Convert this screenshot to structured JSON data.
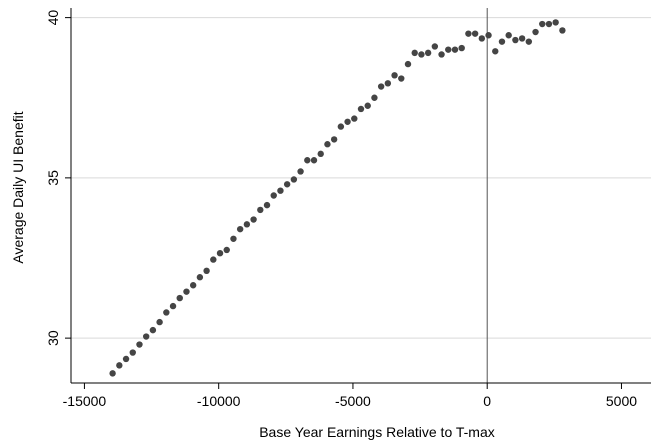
{
  "chart_data": {
    "type": "scatter",
    "xlabel": "Base Year Earnings Relative to T-max",
    "ylabel": "Average Daily UI Benefit",
    "xlim": [
      -15500,
      6100
    ],
    "ylim": [
      28.6,
      40.3
    ],
    "x_ticks": [
      -15000,
      -10000,
      -5000,
      0,
      5000
    ],
    "x_tick_labels": [
      "-15000",
      "-10000",
      "-5000",
      "0",
      "5000"
    ],
    "y_ticks": [
      30,
      35,
      40
    ],
    "y_tick_labels": [
      "30",
      "35",
      "40"
    ],
    "grid": "horizontal",
    "reference_line_x": 0,
    "marker_color": "#454545",
    "series": [
      {
        "points": [
          [
            -13950,
            28.9
          ],
          [
            -13700,
            29.15
          ],
          [
            -13450,
            29.35
          ],
          [
            -13200,
            29.55
          ],
          [
            -12950,
            29.8
          ],
          [
            -12700,
            30.05
          ],
          [
            -12450,
            30.25
          ],
          [
            -12200,
            30.5
          ],
          [
            -11950,
            30.8
          ],
          [
            -11700,
            31.0
          ],
          [
            -11450,
            31.25
          ],
          [
            -11200,
            31.45
          ],
          [
            -10950,
            31.65
          ],
          [
            -10700,
            31.9
          ],
          [
            -10450,
            32.1
          ],
          [
            -10200,
            32.45
          ],
          [
            -9950,
            32.65
          ],
          [
            -9700,
            32.75
          ],
          [
            -9450,
            33.1
          ],
          [
            -9200,
            33.4
          ],
          [
            -8950,
            33.55
          ],
          [
            -8700,
            33.7
          ],
          [
            -8450,
            34.0
          ],
          [
            -8200,
            34.15
          ],
          [
            -7950,
            34.45
          ],
          [
            -7700,
            34.6
          ],
          [
            -7450,
            34.8
          ],
          [
            -7200,
            34.95
          ],
          [
            -6950,
            35.2
          ],
          [
            -6700,
            35.55
          ],
          [
            -6450,
            35.55
          ],
          [
            -6200,
            35.75
          ],
          [
            -5950,
            36.05
          ],
          [
            -5700,
            36.2
          ],
          [
            -5450,
            36.6
          ],
          [
            -5200,
            36.75
          ],
          [
            -4950,
            36.85
          ],
          [
            -4700,
            37.15
          ],
          [
            -4450,
            37.25
          ],
          [
            -4200,
            37.5
          ],
          [
            -3950,
            37.85
          ],
          [
            -3700,
            37.95
          ],
          [
            -3450,
            38.2
          ],
          [
            -3200,
            38.1
          ],
          [
            -2950,
            38.55
          ],
          [
            -2700,
            38.9
          ],
          [
            -2450,
            38.85
          ],
          [
            -2200,
            38.9
          ],
          [
            -1950,
            39.1
          ],
          [
            -1700,
            38.85
          ],
          [
            -1450,
            39.0
          ],
          [
            -1200,
            39.0
          ],
          [
            -950,
            39.05
          ],
          [
            -700,
            39.5
          ],
          [
            -450,
            39.5
          ],
          [
            -200,
            39.35
          ],
          [
            50,
            39.45
          ],
          [
            300,
            38.95
          ],
          [
            550,
            39.25
          ],
          [
            800,
            39.45
          ],
          [
            1050,
            39.3
          ],
          [
            1300,
            39.35
          ],
          [
            1550,
            39.25
          ],
          [
            1800,
            39.55
          ],
          [
            2050,
            39.8
          ],
          [
            2300,
            39.8
          ],
          [
            2550,
            39.85
          ],
          [
            2800,
            39.6
          ]
        ]
      }
    ]
  }
}
